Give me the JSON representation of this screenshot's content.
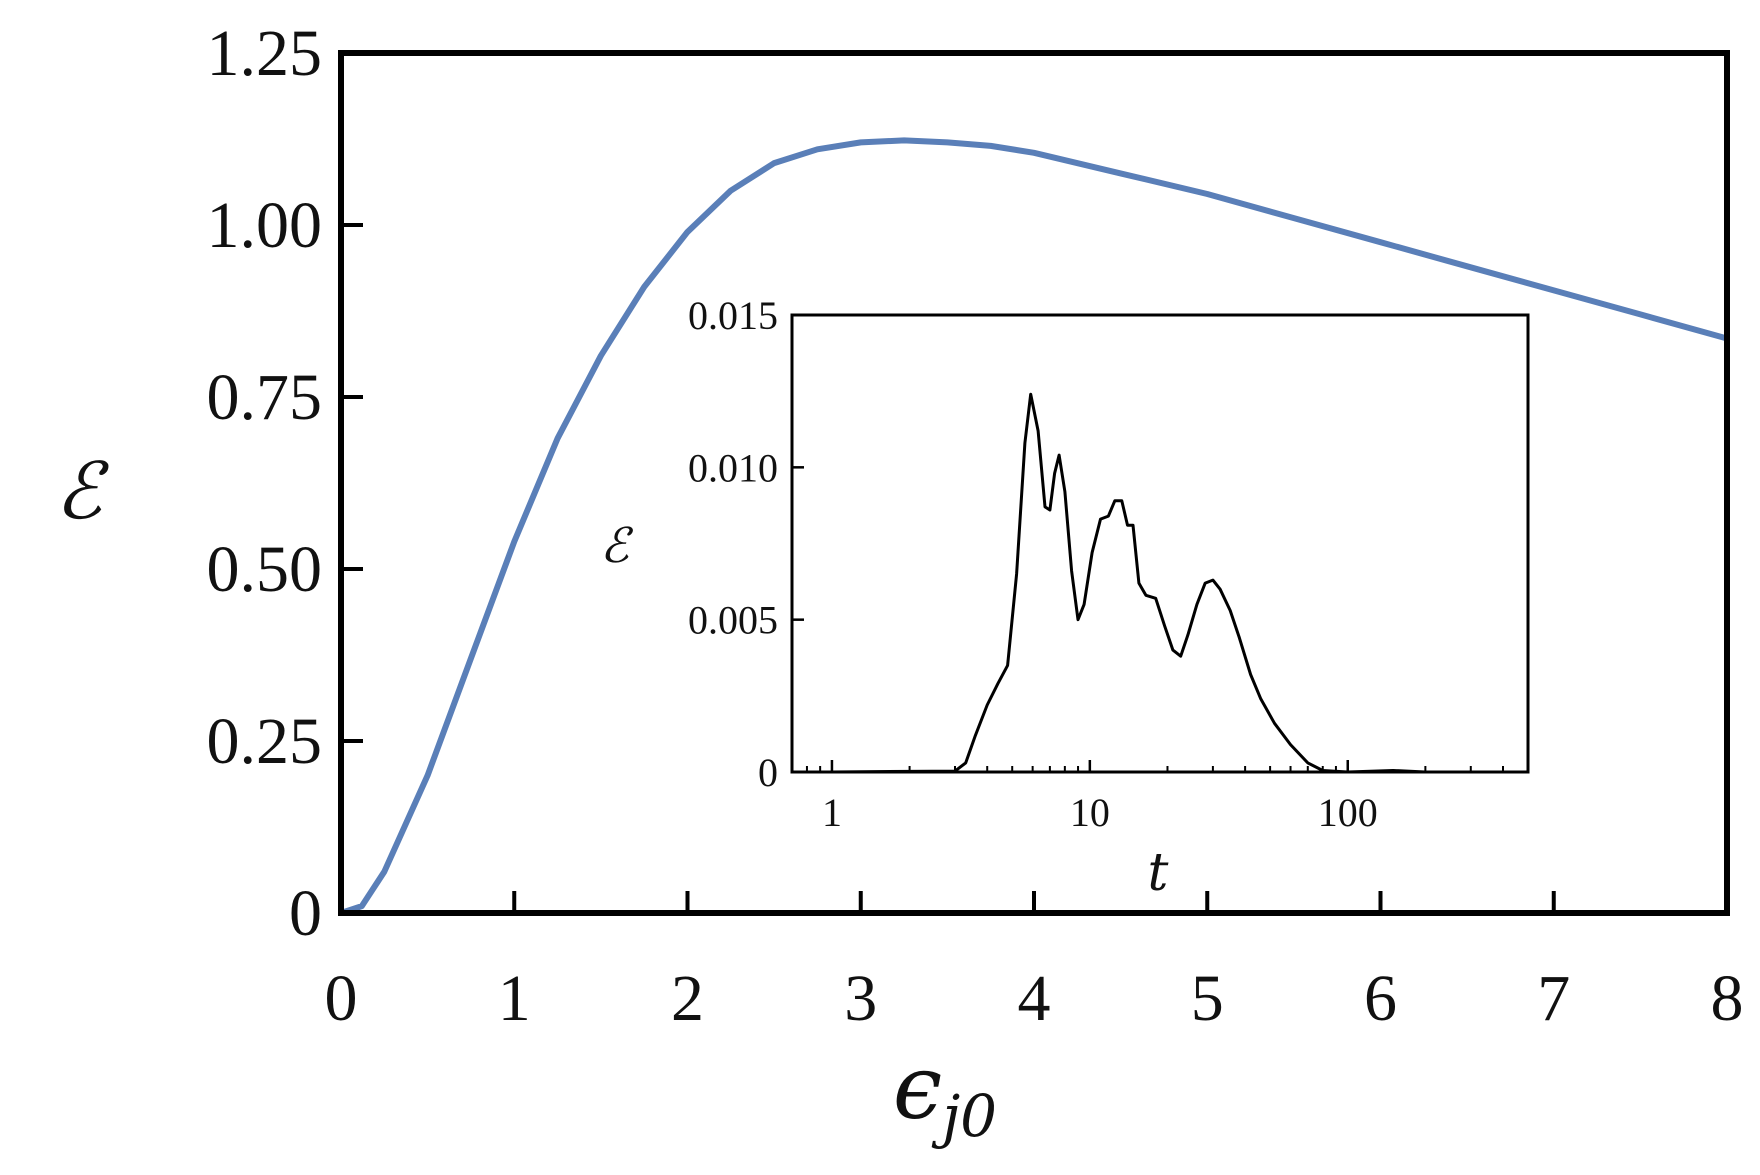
{
  "chart_data": [
    {
      "type": "line",
      "title": "",
      "xlabel": "ϵ",
      "xlabel_subscript": "j0",
      "ylabel": "ℰ",
      "xlim": [
        0,
        8
      ],
      "ylim": [
        0,
        1.25
      ],
      "x_ticks": [
        0,
        1,
        2,
        3,
        4,
        5,
        6,
        7,
        8
      ],
      "x_tick_labels": [
        "0",
        "1",
        "2",
        "3",
        "4",
        "5",
        "6",
        "7",
        "8"
      ],
      "y_ticks": [
        0,
        0.25,
        0.5,
        0.75,
        1.0,
        1.25
      ],
      "y_tick_labels": [
        "0",
        "0.25",
        "0.50",
        "0.75",
        "1.00",
        "1.25"
      ],
      "grid": false,
      "series": [
        {
          "color": "#5a7fb8",
          "x": [
            0,
            0.12,
            0.25,
            0.5,
            0.75,
            1.0,
            1.25,
            1.5,
            1.75,
            2.0,
            2.25,
            2.5,
            2.75,
            3.0,
            3.25,
            3.5,
            3.75,
            4.0,
            4.5,
            5.0,
            5.5,
            6.0,
            6.5,
            7.0,
            7.5,
            8.0
          ],
          "y": [
            0,
            0.01,
            0.06,
            0.2,
            0.37,
            0.54,
            0.69,
            0.81,
            0.91,
            0.99,
            1.05,
            1.09,
            1.11,
            1.12,
            1.123,
            1.12,
            1.115,
            1.105,
            1.075,
            1.045,
            1.01,
            0.975,
            0.94,
            0.905,
            0.87,
            0.835
          ]
        }
      ]
    },
    {
      "type": "line",
      "title": "",
      "xlabel": "t",
      "ylabel": "ℰ",
      "xscale": "log",
      "xlim": [
        0.7,
        500
      ],
      "ylim": [
        0,
        0.015
      ],
      "x_ticks": [
        1,
        10,
        100
      ],
      "x_tick_labels": [
        "1",
        "10",
        "100"
      ],
      "y_ticks": [
        0,
        0.005,
        0.01,
        0.015
      ],
      "y_tick_labels": [
        "0",
        "0.005",
        "0.010",
        "0.015"
      ],
      "grid": false,
      "series": [
        {
          "color": "#000000",
          "x": [
            0.7,
            1,
            2,
            3,
            3.3,
            3.6,
            4,
            4.4,
            4.8,
            5.2,
            5.6,
            5.9,
            6.3,
            6.7,
            7.0,
            7.3,
            7.6,
            8.0,
            8.5,
            9.0,
            9.5,
            10.2,
            11.0,
            11.8,
            12.5,
            13.3,
            14.0,
            14.7,
            15.5,
            16.5,
            18.0,
            19.5,
            21.0,
            22.5,
            24.0,
            26.0,
            28.0,
            30.0,
            32.0,
            35.0,
            38.0,
            42.0,
            46.0,
            52.0,
            60.0,
            70.0,
            80.0,
            100,
            150,
            200,
            300,
            500
          ],
          "y": [
            0,
            0,
            2e-05,
            3e-05,
            0.0003,
            0.0012,
            0.0022,
            0.0029,
            0.0035,
            0.0065,
            0.0108,
            0.0124,
            0.0112,
            0.0087,
            0.0086,
            0.0098,
            0.0104,
            0.0092,
            0.0066,
            0.005,
            0.0055,
            0.0072,
            0.0083,
            0.0084,
            0.0089,
            0.0089,
            0.0081,
            0.0081,
            0.0062,
            0.0058,
            0.0057,
            0.0048,
            0.004,
            0.0038,
            0.0045,
            0.0055,
            0.0062,
            0.0063,
            0.006,
            0.0053,
            0.0044,
            0.0032,
            0.0024,
            0.0016,
            0.0009,
            0.0003,
            5e-05,
            0,
            5e-05,
            0,
            0,
            0
          ]
        }
      ]
    }
  ]
}
